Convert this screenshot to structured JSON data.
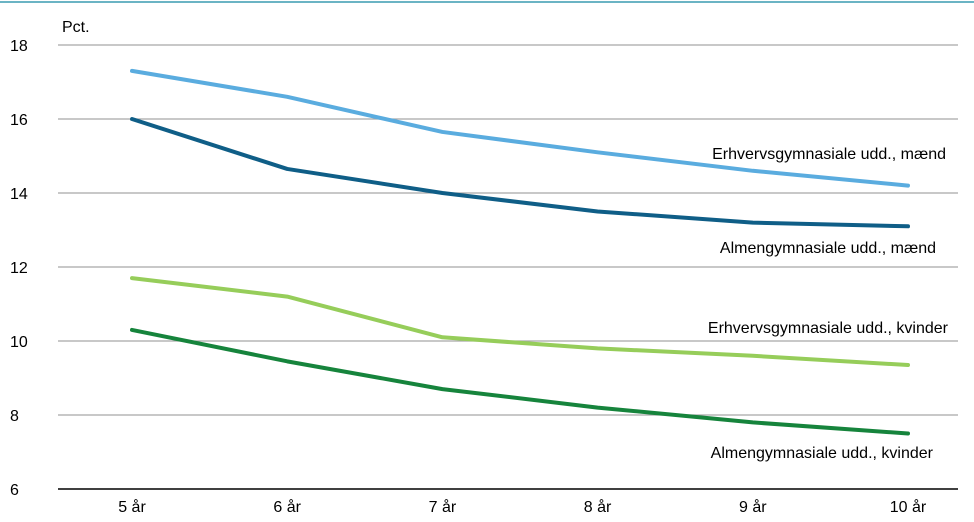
{
  "chart_data": {
    "type": "line",
    "ylabel": "Pct.",
    "ylim": [
      6,
      18
    ],
    "yticks": [
      6,
      8,
      10,
      12,
      14,
      16,
      18
    ],
    "categories": [
      "5 år",
      "6 år",
      "7 år",
      "8 år",
      "9 år",
      "10 år"
    ],
    "grid": true,
    "series": [
      {
        "name": "Erhvervsgymnasiale udd., mænd",
        "color": "#5aacdf",
        "values": [
          17.3,
          16.6,
          15.65,
          15.1,
          14.6,
          14.2
        ]
      },
      {
        "name": "Almengymnasiale udd., mænd",
        "color": "#0f5e87",
        "values": [
          16.0,
          14.65,
          14.0,
          13.5,
          13.2,
          13.1
        ]
      },
      {
        "name": "Erhvervsgymnasiale udd., kvinder",
        "color": "#96cd5a",
        "values": [
          11.7,
          11.2,
          10.1,
          9.8,
          9.6,
          9.35
        ]
      },
      {
        "name": "Almengymnasiale udd., kvinder",
        "color": "#16843c",
        "values": [
          10.3,
          9.45,
          8.7,
          8.2,
          7.8,
          7.5
        ]
      }
    ]
  },
  "colors": {
    "top_rule": "#3a9bb1",
    "gridline": "#a6a6a6",
    "axis": "#000000"
  }
}
